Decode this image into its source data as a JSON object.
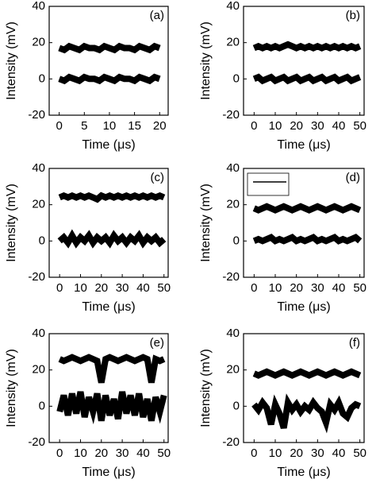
{
  "chart_data": [
    {
      "type": "line",
      "label": "(a)",
      "x_label": "Time (μs)",
      "y_label": "Intensity (mV)",
      "xlim": [
        -2,
        21.7
      ],
      "xticks": [
        0,
        5,
        10,
        15,
        20
      ],
      "ylim": [
        -20,
        40
      ],
      "yticks": [
        -20,
        0,
        20,
        40
      ],
      "color": "#000000",
      "x": [
        0,
        1,
        2,
        3,
        4,
        5,
        6,
        7,
        8,
        9,
        10,
        11,
        12,
        13,
        14,
        15,
        16,
        17,
        18,
        19,
        20
      ],
      "series": [
        {
          "values": [
            17,
            16,
            18,
            17,
            16,
            18,
            17,
            17,
            16,
            18,
            17,
            16,
            18,
            17,
            17,
            16,
            18,
            17,
            16,
            18,
            17
          ]
        },
        {
          "values": [
            0,
            -1,
            1,
            0,
            -1,
            1,
            0,
            0,
            -1,
            1,
            0,
            -1,
            1,
            0,
            0,
            -1,
            1,
            0,
            -1,
            1,
            0
          ]
        }
      ]
    },
    {
      "type": "line",
      "label": "(b)",
      "x_label": "Time (μs)",
      "y_label": "Intensity (mV)",
      "xlim": [
        -5,
        52
      ],
      "xticks": [
        0,
        10,
        20,
        30,
        40,
        50
      ],
      "ylim": [
        -20,
        40
      ],
      "yticks": [
        -20,
        0,
        20,
        40
      ],
      "color": "#000000",
      "x": [
        0,
        2,
        4,
        6,
        8,
        10,
        12,
        14,
        16,
        18,
        20,
        22,
        24,
        26,
        28,
        30,
        32,
        34,
        36,
        38,
        40,
        42,
        44,
        46,
        48,
        50
      ],
      "series": [
        {
          "values": [
            17,
            18,
            17,
            18,
            17,
            18,
            17,
            18,
            19,
            18,
            17,
            18,
            17,
            18,
            17,
            18,
            17,
            18,
            17,
            18,
            17,
            18,
            17,
            18,
            17,
            18
          ]
        },
        {
          "values": [
            0,
            1,
            -1,
            0,
            1,
            -1,
            0,
            1,
            -1,
            0,
            1,
            -1,
            0,
            1,
            -1,
            0,
            1,
            -1,
            0,
            1,
            -1,
            0,
            1,
            -1,
            0,
            1
          ]
        }
      ]
    },
    {
      "type": "line",
      "label": "(c)",
      "x_label": "Time (μs)",
      "y_label": "Intensity (mV)",
      "xlim": [
        -5,
        52
      ],
      "xticks": [
        0,
        10,
        20,
        30,
        40,
        50
      ],
      "ylim": [
        -20,
        40
      ],
      "yticks": [
        -20,
        0,
        20,
        40
      ],
      "color": "#000000",
      "x": [
        0,
        2,
        4,
        6,
        8,
        10,
        12,
        14,
        16,
        18,
        20,
        22,
        24,
        26,
        28,
        30,
        32,
        34,
        36,
        38,
        40,
        42,
        44,
        46,
        48,
        50
      ],
      "series": [
        {
          "values": [
            24,
            25,
            24,
            25,
            24,
            25,
            24,
            25,
            24,
            23,
            25,
            24,
            25,
            24,
            25,
            24,
            25,
            24,
            25,
            24,
            25,
            24,
            25,
            24,
            25,
            24
          ]
        },
        {
          "values": [
            0,
            2,
            -1,
            3,
            -1,
            2,
            0,
            3,
            -1,
            2,
            0,
            2,
            -1,
            3,
            0,
            2,
            -1,
            2,
            0,
            3,
            -1,
            2,
            0,
            2,
            -1,
            1
          ]
        }
      ]
    },
    {
      "type": "line",
      "label": "(d)",
      "x_label": "Time (μs)",
      "y_label": "Intensity (mV)",
      "xlim": [
        -5,
        52
      ],
      "xticks": [
        0,
        10,
        20,
        30,
        40,
        50
      ],
      "ylim": [
        -20,
        40
      ],
      "yticks": [
        -20,
        0,
        20,
        40
      ],
      "color": "#000000",
      "x": [
        0,
        2,
        4,
        6,
        8,
        10,
        12,
        14,
        16,
        18,
        20,
        22,
        24,
        26,
        28,
        30,
        32,
        34,
        36,
        38,
        40,
        42,
        44,
        46,
        48,
        50
      ],
      "series": [
        {
          "values": [
            18,
            17,
            18,
            19,
            18,
            17,
            18,
            19,
            18,
            17,
            18,
            19,
            18,
            17,
            18,
            19,
            18,
            17,
            18,
            19,
            18,
            17,
            18,
            19,
            18,
            17
          ]
        },
        {
          "values": [
            0,
            1,
            0,
            1,
            2,
            0,
            1,
            0,
            1,
            2,
            0,
            1,
            0,
            1,
            2,
            0,
            1,
            0,
            1,
            2,
            0,
            1,
            0,
            1,
            2,
            0
          ]
        }
      ]
    },
    {
      "type": "line",
      "label": "(e)",
      "x_label": "Time (μs)",
      "y_label": "Intensity (mV)",
      "xlim": [
        -5,
        52
      ],
      "xticks": [
        0,
        10,
        20,
        30,
        40,
        50
      ],
      "ylim": [
        -20,
        40
      ],
      "yticks": [
        -20,
        0,
        20,
        40
      ],
      "color": "#000000",
      "x": [
        0,
        2,
        4,
        6,
        8,
        10,
        12,
        14,
        16,
        18,
        20,
        22,
        24,
        26,
        28,
        30,
        32,
        34,
        36,
        38,
        40,
        42,
        44,
        46,
        48,
        50
      ],
      "series": [
        {
          "values": [
            26,
            25,
            26,
            27,
            26,
            25,
            26,
            27,
            26,
            25,
            13,
            26,
            27,
            26,
            25,
            26,
            27,
            26,
            25,
            26,
            27,
            26,
            13,
            26,
            25,
            26
          ]
        },
        {
          "values": [
            -3,
            6,
            -5,
            7,
            -4,
            8,
            -6,
            5,
            -3,
            7,
            -8,
            6,
            -5,
            4,
            -7,
            8,
            -4,
            6,
            -5,
            7,
            -6,
            4,
            -8,
            5,
            -3,
            6
          ]
        }
      ]
    },
    {
      "type": "line",
      "label": "(f)",
      "x_label": "Time (μs)",
      "y_label": "Intensity (mV)",
      "xlim": [
        -5,
        52
      ],
      "xticks": [
        0,
        10,
        20,
        30,
        40,
        50
      ],
      "ylim": [
        -20,
        40
      ],
      "yticks": [
        -20,
        0,
        20,
        40
      ],
      "color": "#000000",
      "x": [
        0,
        2,
        4,
        6,
        8,
        10,
        12,
        14,
        16,
        18,
        20,
        22,
        24,
        26,
        28,
        30,
        32,
        34,
        36,
        38,
        40,
        42,
        44,
        46,
        48,
        50
      ],
      "series": [
        {
          "values": [
            18,
            17,
            18,
            19,
            18,
            17,
            18,
            19,
            18,
            17,
            18,
            19,
            18,
            17,
            18,
            19,
            18,
            17,
            18,
            19,
            18,
            17,
            18,
            19,
            18,
            17
          ]
        },
        {
          "values": [
            1,
            -2,
            2,
            -1,
            -10,
            1,
            -4,
            -12,
            2,
            -2,
            1,
            -3,
            0,
            -2,
            2,
            -1,
            -3,
            -9,
            1,
            -2,
            2,
            -4,
            -6,
            -1,
            1,
            0
          ]
        }
      ]
    }
  ]
}
